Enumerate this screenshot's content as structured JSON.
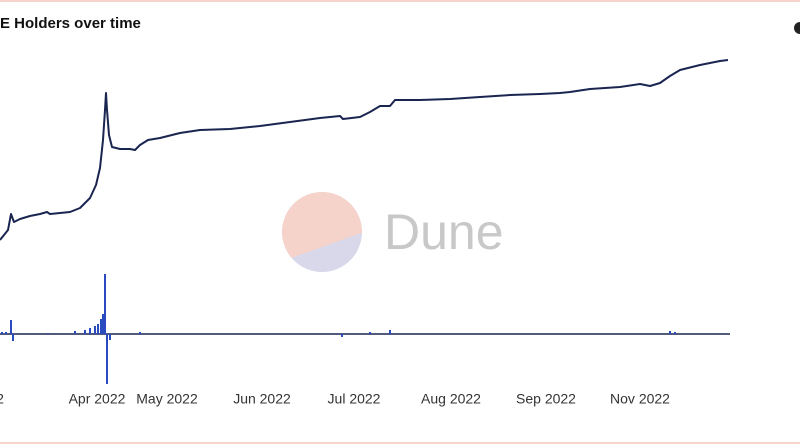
{
  "chart_data": {
    "type": "line-bar",
    "title": "E Holders over time",
    "watermark": "Dune",
    "xlim": [
      0,
      730
    ],
    "ylim": [
      -50,
      284
    ],
    "xticks": [
      {
        "value": 0,
        "label": "2"
      },
      {
        "value": 97,
        "label": "Apr 2022"
      },
      {
        "value": 167,
        "label": "May 2022"
      },
      {
        "value": 262,
        "label": "Jun 2022"
      },
      {
        "value": 354,
        "label": "Jul 2022"
      },
      {
        "value": 451,
        "label": "Aug 2022"
      },
      {
        "value": 546,
        "label": "Sep 2022"
      },
      {
        "value": 640,
        "label": "Nov 2022"
      }
    ],
    "series": [
      {
        "type": "line",
        "color": "#1a2550",
        "x": [
          0,
          8,
          11,
          14,
          20,
          30,
          40,
          47,
          50,
          70,
          80,
          90,
          96,
          100,
          103,
          105,
          106,
          107,
          109,
          112,
          120,
          130,
          135,
          140,
          148,
          160,
          180,
          200,
          230,
          260,
          290,
          320,
          340,
          343,
          360,
          370,
          380,
          390,
          395,
          420,
          450,
          480,
          510,
          540,
          560,
          570,
          590,
          620,
          640,
          650,
          660,
          670,
          680,
          700,
          720,
          728
        ],
        "values": [
          94,
          104,
          120,
          112,
          115,
          118,
          120,
          122,
          120,
          122,
          126,
          136,
          149,
          166,
          194,
          224,
          241,
          224,
          199,
          187,
          185,
          185,
          184,
          189,
          194,
          196,
          201,
          204,
          205,
          208,
          212,
          216,
          218,
          215,
          217,
          222,
          228,
          228,
          234,
          234,
          235,
          237,
          239,
          240,
          241,
          242,
          245,
          247,
          250,
          248,
          251,
          258,
          264,
          269,
          273,
          274
        ]
      },
      {
        "type": "bar",
        "color": "#2a4bbf",
        "x": [
          2,
          6,
          11,
          13,
          48,
          75,
          85,
          90,
          95,
          98,
          101,
          103,
          105,
          107,
          110,
          140,
          342,
          370,
          390,
          670,
          675
        ],
        "values": [
          2,
          2,
          14,
          -7,
          1,
          3,
          4,
          6,
          8,
          10,
          15,
          20,
          60,
          -50,
          -6,
          2,
          -3,
          2,
          4,
          3,
          2
        ]
      }
    ]
  }
}
